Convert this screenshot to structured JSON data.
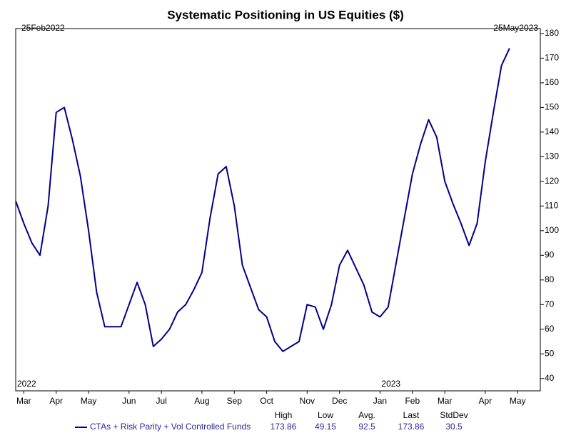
{
  "chart_data": {
    "type": "line",
    "title": "Systematic Positioning in US Equities ($)",
    "range_start": "25Feb2022",
    "range_end": "25May2023",
    "annotations": [
      {
        "text": "2022",
        "at": 0
      },
      {
        "text": "2023",
        "at": 45
      }
    ],
    "categories": [
      null,
      "Mar",
      null,
      null,
      null,
      "Apr",
      null,
      null,
      null,
      "May",
      null,
      null,
      null,
      null,
      "Jun",
      null,
      null,
      null,
      "Jul",
      null,
      null,
      null,
      null,
      "Aug",
      null,
      null,
      null,
      "Sep",
      null,
      null,
      null,
      "Oct",
      null,
      null,
      null,
      null,
      "Nov",
      null,
      null,
      null,
      "Dec",
      null,
      null,
      null,
      null,
      "Jan",
      null,
      null,
      null,
      "Feb",
      null,
      null,
      null,
      "Mar",
      null,
      null,
      null,
      null,
      "Apr",
      null,
      null,
      null,
      "May"
    ],
    "series": [
      {
        "name": "CTAs + Risk Parity + Vol Controlled Funds",
        "color": "#00008b",
        "values": [
          112,
          103,
          95,
          90,
          110,
          148,
          150,
          137,
          122,
          100,
          75,
          61,
          61,
          61,
          70,
          79,
          70,
          53,
          56,
          60,
          67,
          70,
          76,
          83,
          105,
          123,
          126,
          110,
          86,
          77,
          68,
          65,
          55,
          51,
          53,
          55,
          70,
          69,
          60,
          70,
          86,
          92,
          85,
          78,
          67,
          65,
          69,
          87,
          105,
          123,
          135,
          145,
          138,
          120,
          111,
          103,
          94,
          103,
          128,
          148,
          167,
          174,
          null
        ]
      }
    ],
    "ylim": [
      35,
      182
    ],
    "yticks": [
      40,
      50,
      60,
      70,
      80,
      90,
      100,
      110,
      120,
      130,
      140,
      150,
      160,
      170,
      180
    ],
    "grid": false,
    "stats": {
      "labels": [
        "High",
        "Low",
        "Avg.",
        "Last",
        "StdDev"
      ],
      "values": [
        173.86,
        49.15,
        92.5,
        173.86,
        30.5
      ]
    }
  }
}
